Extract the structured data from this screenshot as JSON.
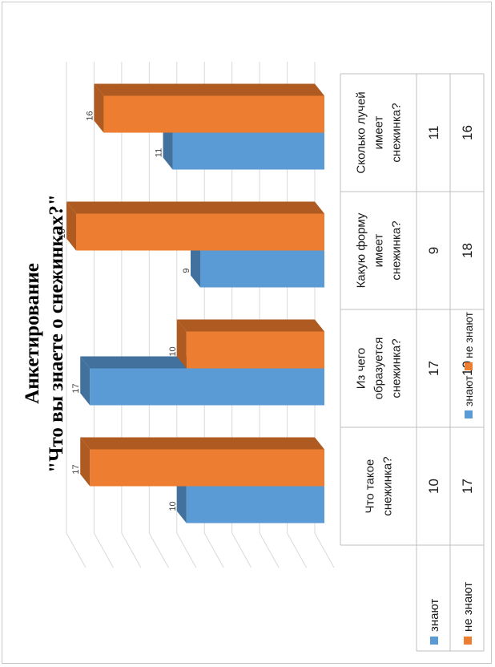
{
  "chart_data": {
    "type": "bar",
    "orientation": "rotated",
    "title": "Анкетирование",
    "subtitle": "\"Что вы знаете о снежинках?\"",
    "categories": [
      [
        "Что такое",
        "снежинка?"
      ],
      [
        "Из чего",
        "образуется",
        "снежинка?"
      ],
      [
        "Какую форму",
        "имеет",
        "снежинка?"
      ],
      [
        "Сколько лучей",
        "имеет",
        "снежинка?"
      ]
    ],
    "series": [
      {
        "name": "знают",
        "values": [
          10,
          17,
          9,
          11
        ],
        "color": "#5b9bd5",
        "dark": "#41719c"
      },
      {
        "name": "не знают",
        "values": [
          17,
          10,
          18,
          16
        ],
        "color": "#ed7d31",
        "dark": "#ae5a21"
      }
    ],
    "ylim": [
      0,
      18
    ],
    "grid": true,
    "legend": "bottom",
    "data_table": true
  }
}
